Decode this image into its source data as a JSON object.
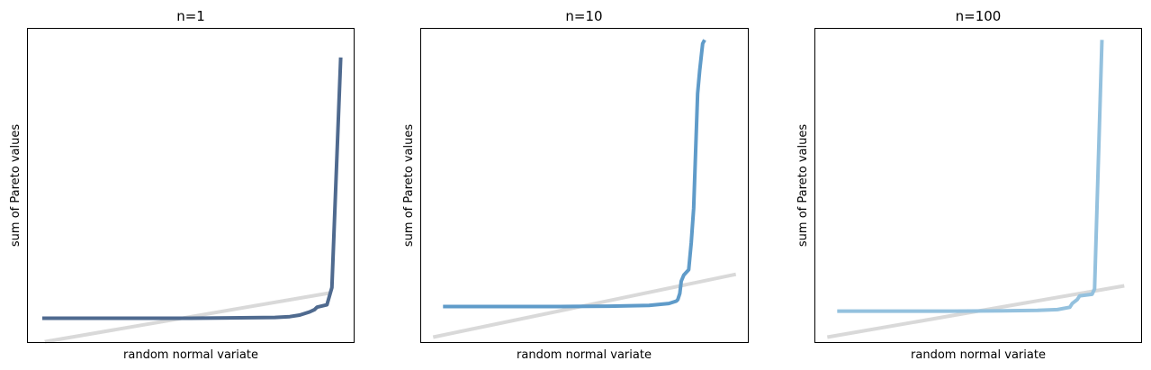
{
  "chart_data": [
    {
      "type": "line",
      "title": "n=1",
      "xlabel": "random normal variate",
      "ylabel": "sum of Pareto values",
      "xticks": false,
      "yticks": false,
      "xlim": [
        -3.3,
        3.3
      ],
      "ylim": [
        -2,
        38
      ],
      "series": [
        {
          "role": "sample",
          "color": "#4f6a8f",
          "x": [
            -3.0,
            -2.0,
            -1.0,
            0.0,
            1.0,
            1.7,
            2.0,
            2.2,
            2.4,
            2.5,
            2.55,
            2.75,
            2.85,
            3.03
          ],
          "y": [
            1.1,
            1.1,
            1.1,
            1.1,
            1.15,
            1.2,
            1.3,
            1.5,
            1.9,
            2.2,
            2.5,
            2.8,
            5.0,
            34.3
          ]
        },
        {
          "role": "reference",
          "color": "#d9d9d9",
          "x": [
            -2.95,
            2.8
          ],
          "y": [
            -1.9,
            4.3
          ]
        }
      ]
    },
    {
      "type": "line",
      "title": "n=10",
      "xlabel": "random normal variate",
      "ylabel": "sum of Pareto values",
      "xticks": false,
      "yticks": false,
      "xlim": [
        -3.3,
        3.3
      ],
      "ylim": [
        -4,
        37
      ],
      "series": [
        {
          "role": "sample",
          "color": "#5f9bc9",
          "x": [
            -2.85,
            -1.5,
            -0.5,
            0.5,
            1.3,
            1.7,
            1.85,
            1.88,
            1.92,
            1.95,
            2.0,
            2.1,
            2.15,
            2.2,
            2.28,
            2.32,
            2.38,
            2.42
          ],
          "y": [
            0.7,
            0.7,
            0.7,
            0.75,
            0.85,
            1.1,
            1.4,
            1.6,
            2.4,
            4.0,
            4.8,
            5.5,
            9.0,
            13.5,
            28.5,
            31.5,
            35.0,
            35.5
          ],
          "__note_x_y_pairs_continue": null
        },
        {
          "role": "reference",
          "color": "#d9d9d9",
          "x": [
            -3.05,
            3.05
          ],
          "y": [
            -3.3,
            4.9
          ]
        }
      ]
    },
    {
      "type": "line",
      "title": "n=100",
      "xlabel": "random normal variate",
      "ylabel": "sum of Pareto values",
      "xticks": false,
      "yticks": false,
      "xlim": [
        -3.3,
        3.3
      ],
      "ylim": [
        -4,
        37
      ],
      "series": [
        {
          "role": "sample",
          "color": "#94c1de",
          "x": [
            -2.85,
            -1.5,
            -0.5,
            0.5,
            1.2,
            1.6,
            1.85,
            1.9,
            2.0,
            2.05,
            2.3,
            2.35,
            2.5
          ],
          "y": [
            0.1,
            0.1,
            0.1,
            0.15,
            0.2,
            0.3,
            0.6,
            1.1,
            1.6,
            2.1,
            2.3,
            3.0,
            35.5
          ]
        },
        {
          "role": "reference",
          "color": "#d9d9d9",
          "x": [
            -3.05,
            2.95
          ],
          "y": [
            -3.3,
            3.4
          ]
        }
      ]
    }
  ]
}
